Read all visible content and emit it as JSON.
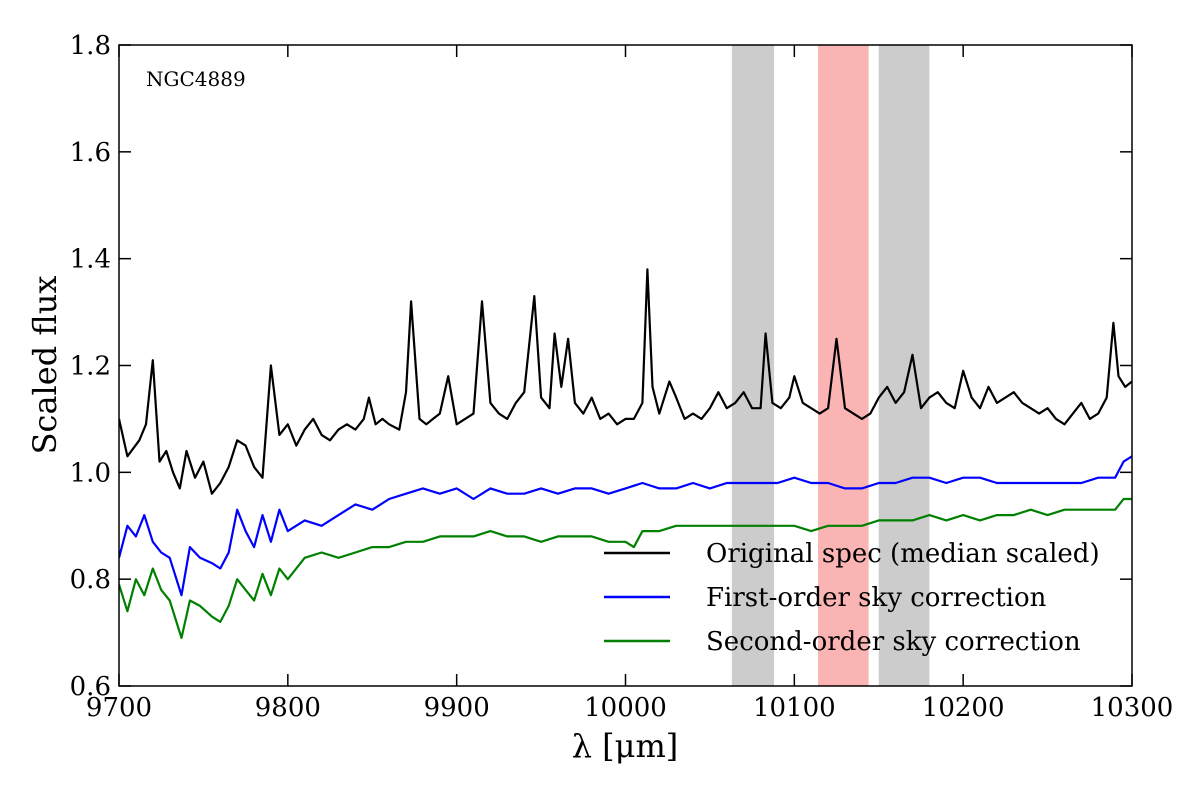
{
  "chart_data": {
    "type": "line",
    "title": "",
    "annotation": "NGC4889",
    "xlabel": "λ [μm]",
    "ylabel": "Scaled flux",
    "xlim": [
      9700,
      10300
    ],
    "ylim": [
      0.6,
      1.8
    ],
    "x_ticks": [
      9700,
      9800,
      9900,
      10000,
      10100,
      10200,
      10300
    ],
    "y_ticks": [
      0.6,
      0.8,
      1.0,
      1.2,
      1.4,
      1.6,
      1.8
    ],
    "x_tick_labels": [
      "9700",
      "9800",
      "9900",
      "10000",
      "10100",
      "10200",
      "10300"
    ],
    "y_tick_labels": [
      "0.6",
      "0.8",
      "1.0",
      "1.2",
      "1.4",
      "1.6",
      "1.8"
    ],
    "legend_position": "lower-right",
    "shaded_bands": [
      {
        "name": "sky-band-left",
        "x0": 10063,
        "x1": 10088,
        "color": "#cccccc"
      },
      {
        "name": "target-band",
        "x0": 10114,
        "x1": 10144,
        "color": "#fbb4b4"
      },
      {
        "name": "sky-band-right",
        "x0": 10150,
        "x1": 10180,
        "color": "#cccccc"
      }
    ],
    "series": [
      {
        "name": "Original spec (median scaled)",
        "color": "#000000",
        "x": [
          9700,
          9705,
          9712,
          9716,
          9720,
          9724,
          9728,
          9732,
          9736,
          9740,
          9745,
          9750,
          9755,
          9760,
          9765,
          9770,
          9775,
          9780,
          9785,
          9790,
          9795,
          9800,
          9805,
          9810,
          9815,
          9820,
          9825,
          9830,
          9835,
          9840,
          9845,
          9848,
          9852,
          9856,
          9860,
          9866,
          9870,
          9873,
          9878,
          9882,
          9886,
          9890,
          9895,
          9900,
          9905,
          9910,
          9915,
          9920,
          9925,
          9930,
          9935,
          9940,
          9946,
          9950,
          9955,
          9958,
          9962,
          9966,
          9970,
          9975,
          9980,
          9985,
          9990,
          9995,
          10000,
          10005,
          10010,
          10013,
          10016,
          10020,
          10026,
          10030,
          10035,
          10040,
          10045,
          10050,
          10055,
          10060,
          10065,
          10070,
          10075,
          10080,
          10083,
          10087,
          10092,
          10097,
          10100,
          10105,
          10110,
          10115,
          10120,
          10125,
          10130,
          10135,
          10140,
          10145,
          10150,
          10155,
          10160,
          10165,
          10170,
          10175,
          10180,
          10185,
          10190,
          10195,
          10200,
          10205,
          10210,
          10215,
          10220,
          10225,
          10230,
          10235,
          10240,
          10245,
          10250,
          10255,
          10260,
          10265,
          10270,
          10275,
          10280,
          10285,
          10289,
          10292,
          10296,
          10300
        ],
        "y": [
          1.1,
          1.03,
          1.06,
          1.09,
          1.21,
          1.02,
          1.04,
          1.0,
          0.97,
          1.04,
          0.99,
          1.02,
          0.96,
          0.98,
          1.01,
          1.06,
          1.05,
          1.01,
          0.99,
          1.2,
          1.07,
          1.09,
          1.05,
          1.08,
          1.1,
          1.07,
          1.06,
          1.08,
          1.09,
          1.08,
          1.1,
          1.14,
          1.09,
          1.1,
          1.09,
          1.08,
          1.15,
          1.32,
          1.1,
          1.09,
          1.1,
          1.11,
          1.18,
          1.09,
          1.1,
          1.11,
          1.32,
          1.13,
          1.11,
          1.1,
          1.13,
          1.15,
          1.33,
          1.14,
          1.12,
          1.26,
          1.16,
          1.25,
          1.13,
          1.11,
          1.14,
          1.1,
          1.11,
          1.09,
          1.1,
          1.1,
          1.13,
          1.38,
          1.16,
          1.11,
          1.17,
          1.14,
          1.1,
          1.11,
          1.1,
          1.12,
          1.15,
          1.12,
          1.13,
          1.15,
          1.12,
          1.12,
          1.26,
          1.13,
          1.12,
          1.14,
          1.18,
          1.13,
          1.12,
          1.11,
          1.12,
          1.25,
          1.12,
          1.11,
          1.1,
          1.11,
          1.14,
          1.16,
          1.13,
          1.15,
          1.22,
          1.12,
          1.14,
          1.15,
          1.13,
          1.12,
          1.19,
          1.14,
          1.12,
          1.16,
          1.13,
          1.14,
          1.15,
          1.13,
          1.12,
          1.11,
          1.12,
          1.1,
          1.09,
          1.11,
          1.13,
          1.1,
          1.11,
          1.14,
          1.28,
          1.18,
          1.16,
          1.17
        ]
      },
      {
        "name": "First-order sky correction",
        "color": "#0000ff",
        "x": [
          9700,
          9705,
          9710,
          9715,
          9720,
          9725,
          9730,
          9737,
          9742,
          9748,
          9755,
          9760,
          9765,
          9770,
          9775,
          9780,
          9785,
          9790,
          9795,
          9800,
          9810,
          9820,
          9830,
          9840,
          9850,
          9860,
          9870,
          9880,
          9890,
          9900,
          9910,
          9920,
          9930,
          9940,
          9950,
          9960,
          9970,
          9980,
          9990,
          10000,
          10010,
          10020,
          10030,
          10040,
          10050,
          10060,
          10070,
          10080,
          10090,
          10100,
          10110,
          10120,
          10130,
          10140,
          10150,
          10160,
          10170,
          10180,
          10190,
          10200,
          10210,
          10220,
          10230,
          10240,
          10250,
          10260,
          10270,
          10280,
          10290,
          10295,
          10300
        ],
        "y": [
          0.84,
          0.9,
          0.88,
          0.92,
          0.87,
          0.85,
          0.84,
          0.77,
          0.86,
          0.84,
          0.83,
          0.82,
          0.85,
          0.93,
          0.89,
          0.86,
          0.92,
          0.87,
          0.93,
          0.89,
          0.91,
          0.9,
          0.92,
          0.94,
          0.93,
          0.95,
          0.96,
          0.97,
          0.96,
          0.97,
          0.95,
          0.97,
          0.96,
          0.96,
          0.97,
          0.96,
          0.97,
          0.97,
          0.96,
          0.97,
          0.98,
          0.97,
          0.97,
          0.98,
          0.97,
          0.98,
          0.98,
          0.98,
          0.98,
          0.99,
          0.98,
          0.98,
          0.97,
          0.97,
          0.98,
          0.98,
          0.99,
          0.99,
          0.98,
          0.99,
          0.99,
          0.98,
          0.98,
          0.98,
          0.98,
          0.98,
          0.98,
          0.99,
          0.99,
          1.02,
          1.03
        ]
      },
      {
        "name": "Second-order sky correction",
        "color": "#008000",
        "x": [
          9700,
          9705,
          9710,
          9715,
          9720,
          9725,
          9730,
          9737,
          9742,
          9748,
          9755,
          9760,
          9765,
          9770,
          9775,
          9780,
          9785,
          9790,
          9795,
          9800,
          9810,
          9820,
          9830,
          9840,
          9850,
          9860,
          9870,
          9880,
          9890,
          9900,
          9910,
          9920,
          9930,
          9940,
          9950,
          9960,
          9970,
          9980,
          9990,
          10000,
          10005,
          10010,
          10020,
          10030,
          10040,
          10050,
          10060,
          10070,
          10080,
          10090,
          10100,
          10110,
          10120,
          10130,
          10140,
          10150,
          10160,
          10170,
          10180,
          10190,
          10200,
          10210,
          10220,
          10230,
          10240,
          10250,
          10260,
          10270,
          10280,
          10290,
          10295,
          10300
        ],
        "y": [
          0.79,
          0.74,
          0.8,
          0.77,
          0.82,
          0.78,
          0.76,
          0.69,
          0.76,
          0.75,
          0.73,
          0.72,
          0.75,
          0.8,
          0.78,
          0.76,
          0.81,
          0.77,
          0.82,
          0.8,
          0.84,
          0.85,
          0.84,
          0.85,
          0.86,
          0.86,
          0.87,
          0.87,
          0.88,
          0.88,
          0.88,
          0.89,
          0.88,
          0.88,
          0.87,
          0.88,
          0.88,
          0.88,
          0.87,
          0.87,
          0.86,
          0.89,
          0.89,
          0.9,
          0.9,
          0.9,
          0.9,
          0.9,
          0.9,
          0.9,
          0.9,
          0.89,
          0.9,
          0.9,
          0.9,
          0.91,
          0.91,
          0.91,
          0.92,
          0.91,
          0.92,
          0.91,
          0.92,
          0.92,
          0.93,
          0.92,
          0.93,
          0.93,
          0.93,
          0.93,
          0.95,
          0.95
        ]
      }
    ]
  }
}
